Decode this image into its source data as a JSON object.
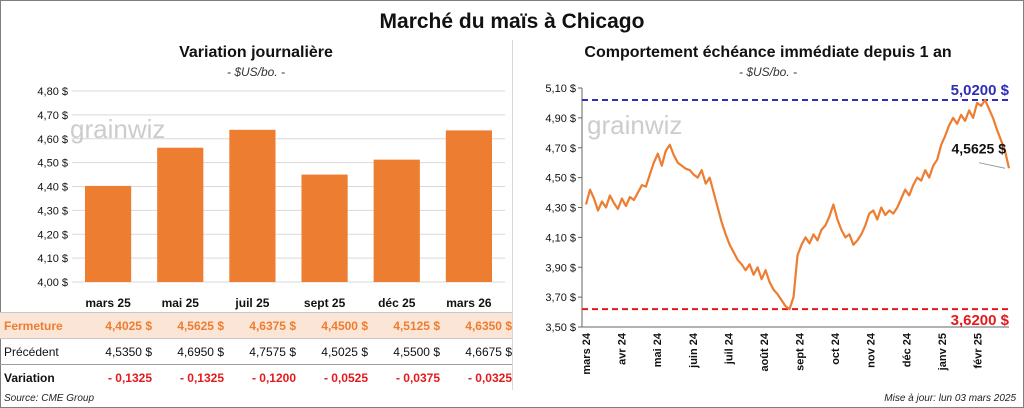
{
  "main_title": "Marché du maïs à Chicago",
  "left": {
    "title": "Variation journalière",
    "unit": "- $US/bo. -",
    "watermark": "grainwiz"
  },
  "right": {
    "title": "Comportement échéance immédiate depuis 1 an",
    "unit": "- $US/bo. -",
    "watermark": "grainwiz"
  },
  "table": {
    "fermeture_label": "Fermeture",
    "precedent_label": "Précédent",
    "variation_label": "Variation",
    "fermeture": [
      "4,4025 $",
      "4,5625 $",
      "4,6375 $",
      "4,4500 $",
      "4,5125 $",
      "4,6350 $"
    ],
    "precedent": [
      "4,5350 $",
      "4,6950 $",
      "4,7575 $",
      "4,5025 $",
      "4,5500 $",
      "4,6675 $"
    ],
    "variation": [
      "- 0,1325",
      "- 0,1325",
      "- 0,1200",
      "- 0,0525",
      "- 0,0375",
      "- 0,0325"
    ]
  },
  "source": "Source: CME Group",
  "updated": "Mise à jour: lun 03 mars 2025",
  "colors": {
    "bar": "#ed7d31",
    "line": "#ed7d31",
    "high": "#2e2eb8",
    "low": "#e31a1c",
    "grid": "#d9d9d9"
  },
  "chart_data": [
    {
      "type": "bar",
      "title": "Variation journalière",
      "categories": [
        "mars 25",
        "mai 25",
        "juil 25",
        "sept 25",
        "déc 25",
        "mars 26"
      ],
      "values": [
        4.4025,
        4.5625,
        4.6375,
        4.45,
        4.5125,
        4.635
      ],
      "ylim": [
        4.0,
        4.8
      ],
      "yticks": [
        "4,00 $",
        "4,10 $",
        "4,20 $",
        "4,30 $",
        "4,40 $",
        "4,50 $",
        "4,60 $",
        "4,70 $",
        "4,80 $"
      ],
      "grid": true
    },
    {
      "type": "line",
      "title": "Comportement échéance immédiate depuis 1 an",
      "x_labels": [
        "mars 24",
        "avr 24",
        "mai 24",
        "juin 24",
        "juil 24",
        "août 24",
        "sept 24",
        "oct 24",
        "nov 24",
        "déc 24",
        "janv 25",
        "févr 25"
      ],
      "yticks": [
        "3,50 $",
        "3,70 $",
        "3,90 $",
        "4,10 $",
        "4,30 $",
        "4,50 $",
        "4,70 $",
        "4,90 $",
        "5,10 $"
      ],
      "ylim": [
        3.5,
        5.1
      ],
      "values": [
        4.32,
        4.42,
        4.36,
        4.28,
        4.34,
        4.3,
        4.38,
        4.33,
        4.29,
        4.36,
        4.31,
        4.37,
        4.35,
        4.4,
        4.45,
        4.44,
        4.52,
        4.6,
        4.66,
        4.58,
        4.68,
        4.72,
        4.65,
        4.6,
        4.58,
        4.56,
        4.55,
        4.52,
        4.5,
        4.55,
        4.46,
        4.5,
        4.4,
        4.3,
        4.2,
        4.12,
        4.05,
        4.0,
        3.95,
        3.92,
        3.88,
        3.92,
        3.85,
        3.9,
        3.82,
        3.88,
        3.8,
        3.75,
        3.72,
        3.68,
        3.64,
        3.62,
        3.7,
        3.98,
        4.05,
        4.1,
        4.06,
        4.12,
        4.08,
        4.15,
        4.18,
        4.24,
        4.32,
        4.22,
        4.15,
        4.1,
        4.12,
        4.05,
        4.08,
        4.12,
        4.18,
        4.26,
        4.28,
        4.22,
        4.3,
        4.25,
        4.28,
        4.26,
        4.3,
        4.36,
        4.42,
        4.38,
        4.45,
        4.5,
        4.48,
        4.55,
        4.5,
        4.58,
        4.62,
        4.72,
        4.78,
        4.85,
        4.9,
        4.86,
        4.92,
        4.88,
        4.95,
        4.9,
        5.0,
        4.98,
        5.02,
        4.96,
        4.9,
        4.82,
        4.75,
        4.68,
        4.5625
      ],
      "reference_lines": [
        {
          "label": "5,0200 $",
          "value": 5.02
        },
        {
          "label": "3,6200 $",
          "value": 3.62
        }
      ],
      "last_value_label": "4,5625 $",
      "grid": false
    }
  ]
}
